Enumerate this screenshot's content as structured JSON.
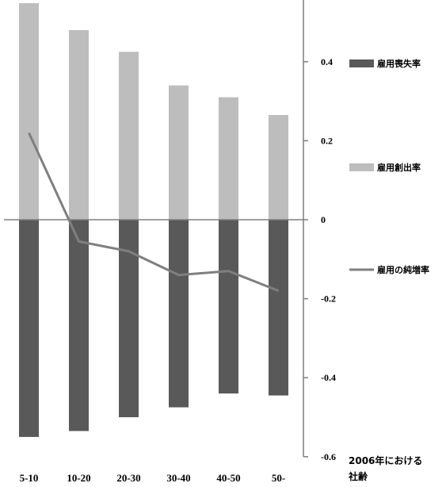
{
  "chart_data": {
    "type": "bar",
    "categories": [
      "5-10",
      "10-20",
      "20-30",
      "30-40",
      "40-50",
      "50-"
    ],
    "series": [
      {
        "name": "雇用創出率",
        "kind": "bar",
        "color": "#bdbdbd",
        "values": [
          0.55,
          0.48,
          0.425,
          0.34,
          0.31,
          0.265
        ]
      },
      {
        "name": "雇用喪失率",
        "kind": "bar",
        "color": "#595959",
        "values": [
          -0.55,
          -0.535,
          -0.5,
          -0.475,
          -0.44,
          -0.445
        ]
      },
      {
        "name": "雇用の純増率",
        "kind": "line",
        "color": "#7f7f7f",
        "values": [
          0.22,
          -0.055,
          -0.08,
          -0.14,
          -0.13,
          -0.18
        ]
      }
    ],
    "ylim": [
      -0.6,
      0.6
    ],
    "yticks": [
      "0.4",
      "0.2",
      "0",
      "-0.2",
      "-0.4",
      "-0.6"
    ],
    "xlabel": "2006年における 社齢",
    "legend_position": "right",
    "grid": false
  }
}
